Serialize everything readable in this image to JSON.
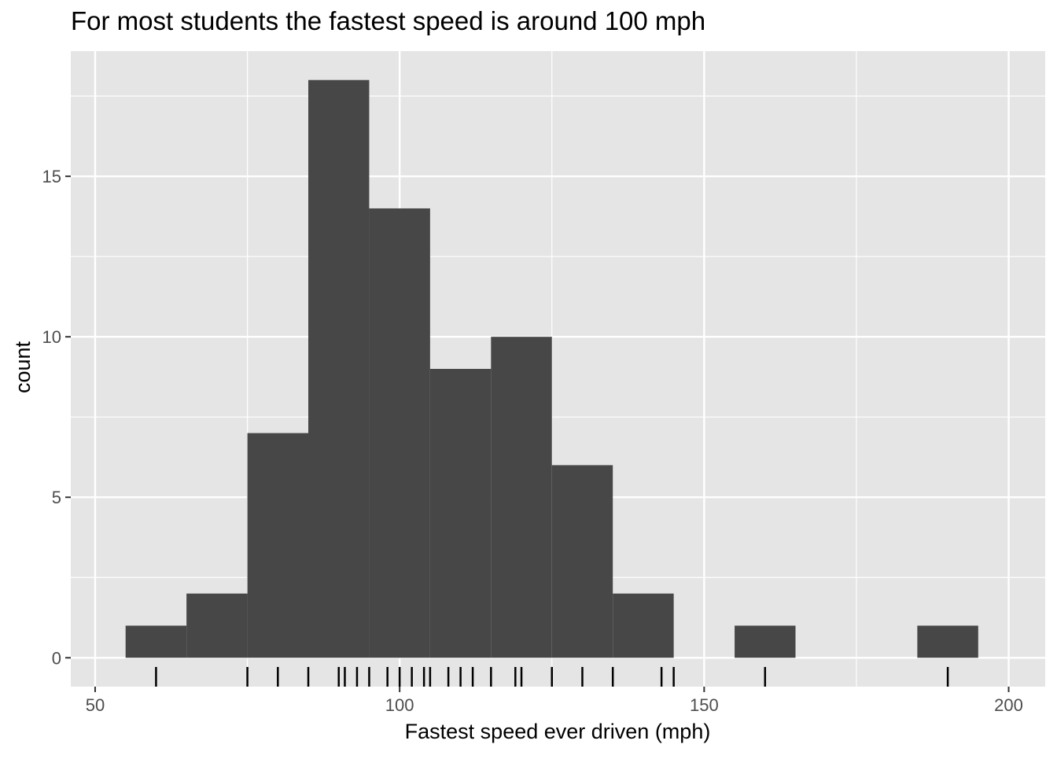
{
  "chart_data": {
    "type": "bar",
    "title": "For most students the fastest speed is around 100 mph",
    "xlabel": "Fastest speed ever driven (mph)",
    "ylabel": "count",
    "xlim": [
      46,
      206
    ],
    "ylim": [
      -0.9,
      18.9
    ],
    "x_ticks": [
      "50",
      "100",
      "150",
      "200"
    ],
    "x_tick_values": [
      50,
      100,
      150,
      200
    ],
    "y_ticks": [
      "0",
      "5",
      "10",
      "15"
    ],
    "y_tick_values": [
      0,
      5,
      10,
      15
    ],
    "grid": true,
    "bin_width": 10,
    "bins": [
      {
        "x_start": 55,
        "x_end": 65,
        "count": 1
      },
      {
        "x_start": 65,
        "x_end": 75,
        "count": 2
      },
      {
        "x_start": 75,
        "x_end": 85,
        "count": 7
      },
      {
        "x_start": 85,
        "x_end": 95,
        "count": 18
      },
      {
        "x_start": 95,
        "x_end": 105,
        "count": 14
      },
      {
        "x_start": 105,
        "x_end": 115,
        "count": 9
      },
      {
        "x_start": 115,
        "x_end": 125,
        "count": 10
      },
      {
        "x_start": 125,
        "x_end": 135,
        "count": 6
      },
      {
        "x_start": 135,
        "x_end": 145,
        "count": 2
      },
      {
        "x_start": 145,
        "x_end": 155,
        "count": 0
      },
      {
        "x_start": 155,
        "x_end": 165,
        "count": 1
      },
      {
        "x_start": 165,
        "x_end": 175,
        "count": 0
      },
      {
        "x_start": 175,
        "x_end": 185,
        "count": 0
      },
      {
        "x_start": 185,
        "x_end": 195,
        "count": 1
      }
    ],
    "rug_values": [
      60,
      75,
      80,
      85,
      90,
      91,
      93,
      95,
      98,
      100,
      102,
      104,
      105,
      108,
      110,
      112,
      115,
      119,
      120,
      125,
      130,
      135,
      143,
      145,
      160,
      190
    ],
    "colors": {
      "panel_background": "#e5e5e5",
      "grid": "#ffffff",
      "bar_fill": "#474747",
      "rug": "#000000"
    }
  }
}
